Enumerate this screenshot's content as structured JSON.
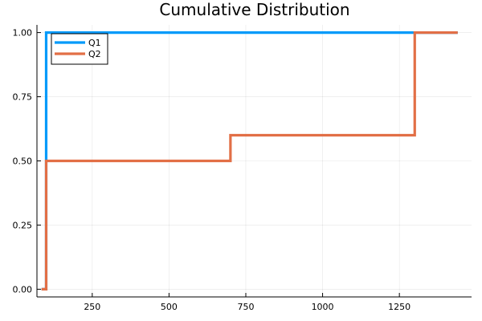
{
  "chart_data": {
    "type": "line",
    "step": "post",
    "title": "Cumulative Distribution",
    "xlabel": "",
    "ylabel": "",
    "xlim": [
      70,
      1485
    ],
    "ylim": [
      -0.03,
      1.03
    ],
    "xticks": [
      250,
      500,
      750,
      1000,
      1250
    ],
    "yticks": [
      0.0,
      0.25,
      0.5,
      0.75,
      1.0
    ],
    "xtick_labels": [
      "250",
      "500",
      "750",
      "1000",
      "1250"
    ],
    "ytick_labels": [
      "0.00",
      "0.25",
      "0.50",
      "0.75",
      "1.00"
    ],
    "grid": true,
    "legend_position": "top-left",
    "series": [
      {
        "name": "Q1",
        "color": "#009AFA",
        "x": [
          85,
          100,
          1440
        ],
        "y": [
          0.0,
          1.0,
          1.0
        ]
      },
      {
        "name": "Q2",
        "color": "#E26F46",
        "x": [
          85,
          100,
          700,
          1300,
          1440
        ],
        "y": [
          0.0,
          0.5,
          0.6,
          1.0,
          1.0
        ]
      }
    ]
  }
}
